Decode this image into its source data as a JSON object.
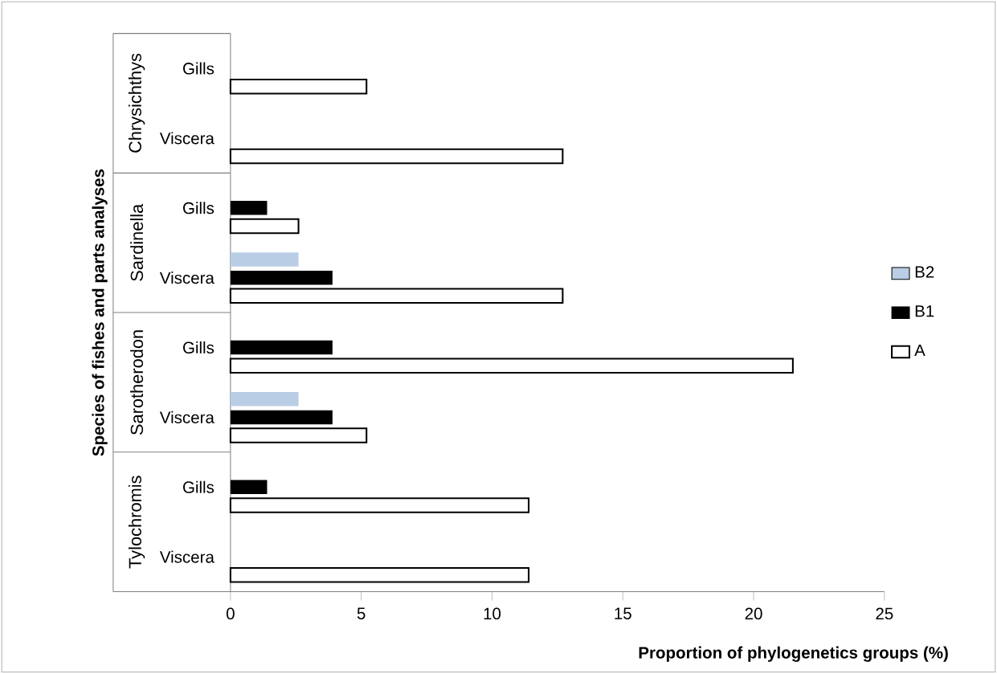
{
  "chart_data": {
    "type": "bar",
    "orientation": "horizontal",
    "xlabel": "Proportion of phylogenetics groups (%)",
    "ylabel": "Species of fishes and parts analyses",
    "categories": [
      "Gills",
      "Viscera",
      "Gills",
      "Viscera",
      "Gills",
      "Viscera",
      "Gills",
      "Viscera"
    ],
    "series": [
      {
        "name": "B2",
        "color": "#b9cde5",
        "values": [
          0,
          0,
          0,
          2.6,
          0,
          2.6,
          0,
          0
        ]
      },
      {
        "name": "B1",
        "color": "#000000",
        "values": [
          0,
          0,
          1.4,
          3.9,
          3.9,
          3.9,
          1.4,
          0
        ]
      },
      {
        "name": "A",
        "color": "#000000",
        "values": [
          5.2,
          12.7,
          2.6,
          12.7,
          21.5,
          5.2,
          11.4,
          11.4
        ]
      }
    ],
    "xlim": [
      0,
      25
    ],
    "xticks": [
      0,
      5,
      10,
      15,
      20,
      25
    ],
    "legend": "right",
    "annotations": [
      "Chrysichthys",
      "Sardinella",
      "Sarotherodon",
      "Tylochromis"
    ]
  }
}
